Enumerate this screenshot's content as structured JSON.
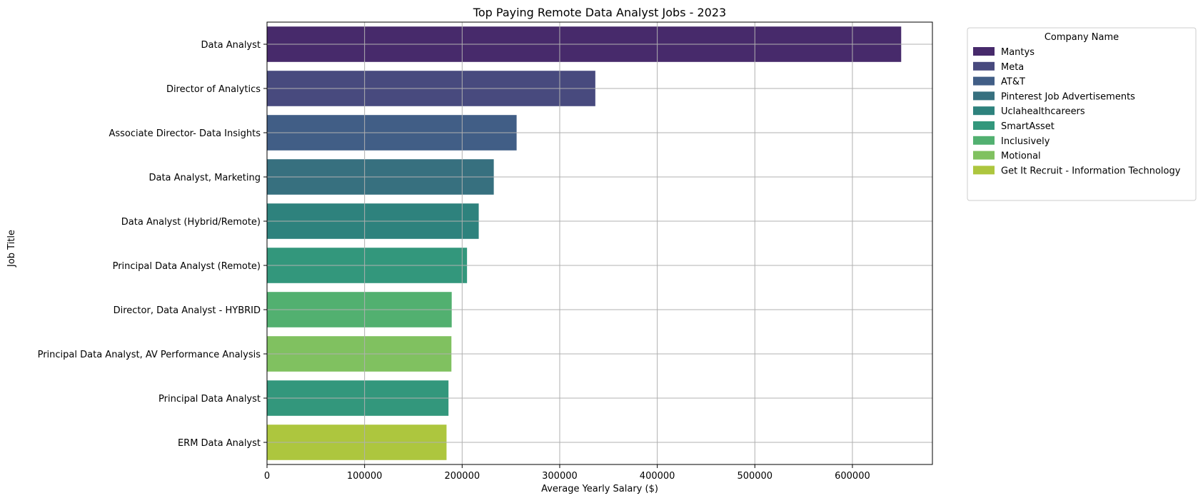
{
  "chart_data": {
    "type": "bar",
    "orientation": "horizontal",
    "title": "Top Paying Remote Data Analyst Jobs - 2023",
    "xlabel": "Average Yearly Salary ($)",
    "ylabel": "Job Title",
    "xlim": [
      0,
      682000
    ],
    "xticks": [
      0,
      100000,
      200000,
      300000,
      400000,
      500000,
      600000
    ],
    "grid": true,
    "legend_placement": "outside-top-right",
    "legend_title": "Company Name",
    "companies": [
      {
        "name": "Mantys",
        "color": "#472a6b"
      },
      {
        "name": "Meta",
        "color": "#484a7e"
      },
      {
        "name": "AT&T",
        "color": "#415e86"
      },
      {
        "name": "Pinterest Job Advertisements",
        "color": "#37707f"
      },
      {
        "name": "Uclahealthcareers",
        "color": "#2e827d"
      },
      {
        "name": "SmartAsset",
        "color": "#33977c"
      },
      {
        "name": "Inclusively",
        "color": "#52b070"
      },
      {
        "name": "Motional",
        "color": "#80c160"
      },
      {
        "name": "Get It Recruit - Information Technology",
        "color": "#adc63e"
      }
    ],
    "categories": [
      "Data Analyst",
      "Director of Analytics",
      "Associate Director- Data Insights",
      "Data Analyst, Marketing",
      "Data Analyst (Hybrid/Remote)",
      "Principal Data Analyst (Remote)",
      "Director, Data Analyst - HYBRID",
      "Principal Data Analyst, AV Performance Analysis",
      "Principal Data Analyst",
      "ERM Data Analyst"
    ],
    "values": [
      650000,
      336500,
      255830,
      232423,
      217000,
      205000,
      189309,
      189000,
      186000,
      184000
    ],
    "bar_companies": [
      "Mantys",
      "Meta",
      "AT&T",
      "Pinterest Job Advertisements",
      "Uclahealthcareers",
      "SmartAsset",
      "Inclusively",
      "Motional",
      "SmartAsset",
      "Get It Recruit - Information Technology"
    ]
  }
}
